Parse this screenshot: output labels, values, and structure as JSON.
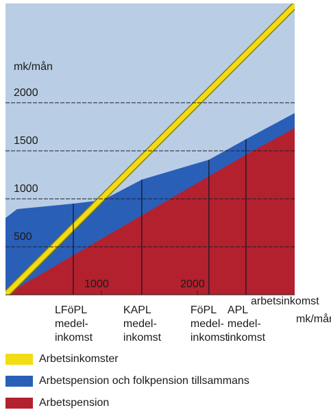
{
  "chart_data": {
    "type": "area",
    "y_label": "mk/mån",
    "x_label": [
      "arbetsinkomst",
      "mk/mån"
    ],
    "xlim": [
      0,
      3015
    ],
    "ylim": [
      0,
      3035
    ],
    "xticks": [
      1000,
      2000
    ],
    "yticks": [
      500,
      1000,
      1500,
      2000
    ],
    "grid": true,
    "categories": [
      [
        "LFöPL",
        "medel-",
        "inkomst"
      ],
      [
        "KAPL",
        "medel-",
        "inkomst"
      ],
      [
        "FöPL",
        "medel-",
        "inkomst"
      ],
      [
        "APL",
        "medel-",
        "inkomst"
      ]
    ],
    "category_x": [
      707,
      1421,
      2121,
      2507
    ],
    "series": [
      {
        "name": "Arbetsinkomster",
        "color": "#f2dc12",
        "kind": "line",
        "x": [
          0,
          3015
        ],
        "values": [
          0,
          3015
        ]
      },
      {
        "name": "Arbetspension och folkpension tillsammans",
        "color": "#2a5fb8",
        "kind": "area",
        "x": [
          0,
          121,
          707,
          1014,
          1421,
          2121,
          2507,
          3015
        ],
        "values": [
          800,
          893,
          950,
          986,
          1200,
          1407,
          1621,
          1893
        ]
      },
      {
        "name": "Arbetspension",
        "color": "#b3212e",
        "kind": "area",
        "x": [
          0,
          2507,
          3015
        ],
        "values": [
          0,
          1460,
          1736
        ]
      }
    ]
  }
}
